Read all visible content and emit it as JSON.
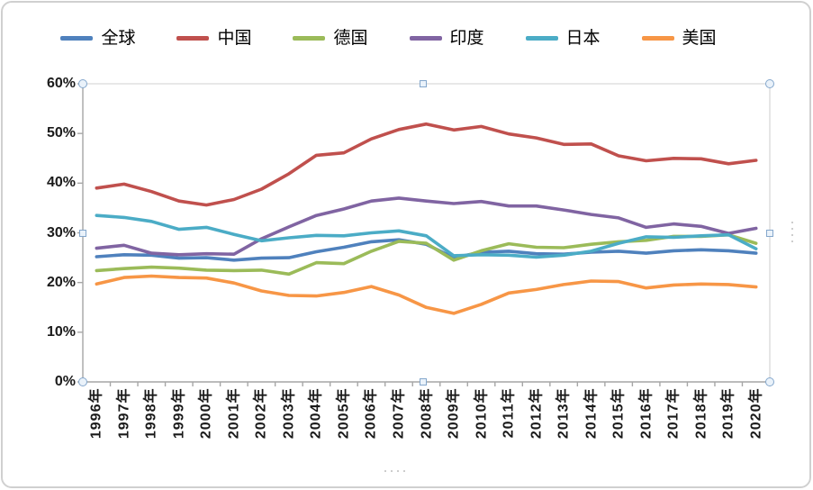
{
  "chart_data": {
    "type": "line",
    "title": "",
    "legend_position": "top",
    "gridlines": false,
    "x_categories": [
      "1996年",
      "1997年",
      "1998年",
      "1999年",
      "2000年",
      "2001年",
      "2002年",
      "2003年",
      "2004年",
      "2005年",
      "2006年",
      "2007年",
      "2008年",
      "2009年",
      "2010年",
      "2011年",
      "2012年",
      "2013年",
      "2014年",
      "2015年",
      "2016年",
      "2017年",
      "2018年",
      "2019年",
      "2020年"
    ],
    "y_axis": {
      "min": 0,
      "max": 60,
      "step": 10,
      "format": "percent",
      "tick_labels": [
        "0%",
        "10%",
        "20%",
        "30%",
        "40%",
        "50%",
        "60%"
      ]
    },
    "series": [
      {
        "id": "global",
        "name": "全球",
        "color": "#4F81BD",
        "values": [
          25.2,
          25.6,
          25.5,
          24.9,
          25.0,
          24.5,
          24.9,
          25.0,
          26.2,
          27.1,
          28.2,
          28.6,
          27.7,
          25.0,
          26.1,
          26.3,
          25.8,
          25.7,
          26.1,
          26.3,
          25.9,
          26.4,
          26.6,
          26.4,
          25.9
        ]
      },
      {
        "id": "china",
        "name": "中国",
        "color": "#C0504D",
        "values": [
          39.0,
          39.8,
          38.3,
          36.4,
          35.6,
          36.7,
          38.8,
          41.9,
          45.6,
          46.1,
          48.9,
          50.8,
          51.9,
          50.7,
          51.4,
          49.9,
          49.1,
          47.8,
          47.9,
          45.5,
          44.5,
          45.0,
          44.9,
          43.9,
          44.6
        ]
      },
      {
        "id": "germany",
        "name": "德国",
        "color": "#9BBB59",
        "values": [
          22.4,
          22.8,
          23.1,
          22.9,
          22.5,
          22.4,
          22.5,
          21.7,
          24.0,
          23.8,
          26.3,
          28.3,
          27.9,
          24.5,
          26.4,
          27.8,
          27.1,
          27.0,
          27.7,
          28.2,
          28.5,
          29.3,
          29.3,
          29.6,
          27.9
        ]
      },
      {
        "id": "india",
        "name": "印度",
        "color": "#8064A2",
        "values": [
          26.9,
          27.5,
          25.9,
          25.6,
          25.8,
          25.7,
          28.8,
          31.2,
          33.5,
          34.8,
          36.4,
          37.0,
          36.4,
          35.9,
          36.3,
          35.4,
          35.4,
          34.6,
          33.7,
          33.0,
          31.1,
          31.8,
          31.3,
          29.9,
          30.9
        ]
      },
      {
        "id": "japan",
        "name": "日本",
        "color": "#4BACC6",
        "values": [
          33.5,
          33.1,
          32.3,
          30.7,
          31.1,
          29.7,
          28.4,
          29.0,
          29.5,
          29.4,
          30.0,
          30.4,
          29.4,
          25.4,
          25.6,
          25.5,
          25.1,
          25.5,
          26.3,
          27.9,
          29.2,
          29.1,
          29.4,
          29.6,
          26.8
        ]
      },
      {
        "id": "usa",
        "name": "美国",
        "color": "#F79646",
        "values": [
          19.7,
          21.0,
          21.3,
          21.0,
          20.9,
          19.9,
          18.3,
          17.4,
          17.3,
          18.0,
          19.2,
          17.5,
          15.0,
          13.8,
          15.6,
          17.9,
          18.6,
          19.6,
          20.3,
          20.2,
          18.9,
          19.5,
          19.7,
          19.6,
          19.1
        ]
      }
    ]
  },
  "colors": {
    "axis_line": "#a6a6a6",
    "plot_border": "#d9d9d9",
    "tick_label": "#1a1a1a",
    "handle_fill": "#eaf2fa",
    "handle_border": "#84a7cc"
  }
}
